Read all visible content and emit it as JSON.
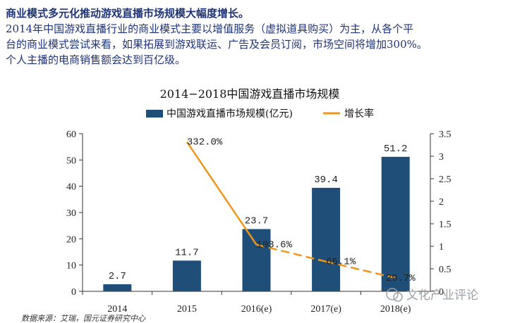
{
  "intro": {
    "headline": "商业模式多元化推动游戏直播市场规模大幅度增长。",
    "line2": "2014年中国游戏直播行业的商业模式主要以增值服务（虚拟道具购买）为主，从各个平",
    "line3": "台的商业模式尝试来看，如果拓展到游戏联运、广告及会员订阅，市场空间将增加300%。",
    "line4": "个人主播的电商销售额会达到百亿级。"
  },
  "source_note": "数据来源：艾瑞，国元证券研究中心",
  "watermark": "文化产业评论",
  "colors": {
    "bar": "#1f4e79",
    "line": "#f0961b",
    "text": "#1f3478"
  },
  "chart_data": {
    "type": "bar",
    "title": "2014−2018中国游戏直播市场规模",
    "categories": [
      "2014",
      "2015",
      "2016(e)",
      "2017(e)",
      "2018(e)"
    ],
    "series": [
      {
        "name": "中国游戏直播市场规模(亿元)",
        "type": "bar",
        "axis": "left",
        "values": [
          2.7,
          11.7,
          23.7,
          39.4,
          51.2
        ],
        "labels": [
          "2.7",
          "11.7",
          "23.7",
          "39.4",
          "51.2"
        ]
      },
      {
        "name": "增长率",
        "type": "line",
        "axis": "right",
        "values": [
          null,
          3.32,
          1.036,
          0.661,
          0.297
        ],
        "labels": [
          "",
          "332.0%",
          "103.6%",
          "66.1%",
          "29.7%"
        ],
        "dashed_from_index": 2
      }
    ],
    "y_left": {
      "min": 0,
      "max": 60,
      "ticks": [
        "0",
        "10",
        "20",
        "30",
        "40",
        "50",
        "60"
      ]
    },
    "y_right": {
      "min": 0,
      "max": 3.5,
      "ticks": [
        "0",
        "0.5",
        "1",
        "1.5",
        "2",
        "2.5",
        "3",
        "3.5"
      ]
    },
    "grid": false,
    "legend_position": "top"
  }
}
